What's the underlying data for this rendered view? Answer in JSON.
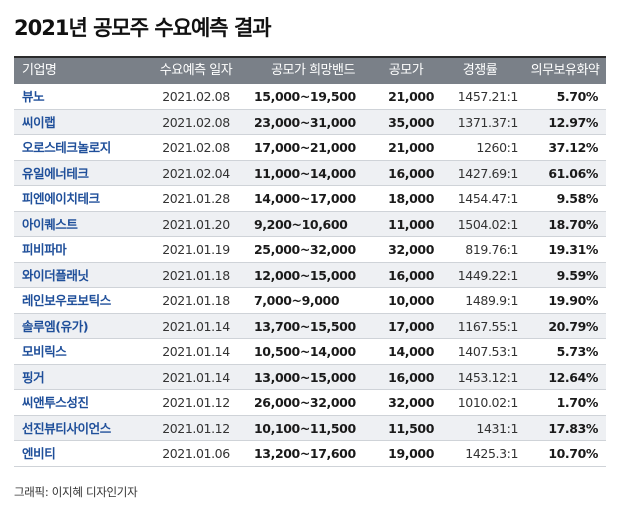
{
  "title": "2021년 공모주 수요예측 결과",
  "credit": "그래픽: 이지혜 디자인기자",
  "colors": {
    "header_bg": "#7a8088",
    "header_rule": "#2c2c2c",
    "company_text": "#1f4f9a",
    "row_alt_bg": "#eef0f3"
  },
  "chart_data": {
    "type": "table",
    "title": "2021년 공모주 수요예측 결과",
    "columns": [
      "기업명",
      "수요예측 일자",
      "공모가 희망밴드",
      "공모가",
      "경쟁률",
      "의무보유화약"
    ],
    "rows": [
      [
        "뷰노",
        "2021.02.08",
        "15,000~19,500",
        "21,000",
        "1457.21:1",
        "5.70%"
      ],
      [
        "씨이랩",
        "2021.02.08",
        "23,000~31,000",
        "35,000",
        "1371.37:1",
        "12.97%"
      ],
      [
        "오로스테크놀로지",
        "2021.02.08",
        "17,000~21,000",
        "21,000",
        "1260:1",
        "37.12%"
      ],
      [
        "유일에너테크",
        "2021.02.04",
        "11,000~14,000",
        "16,000",
        "1427.69:1",
        "61.06%"
      ],
      [
        "피엔에이치테크",
        "2021.01.28",
        "14,000~17,000",
        "18,000",
        "1454.47:1",
        "9.58%"
      ],
      [
        "아이퀘스트",
        "2021.01.20",
        "9,200~10,600",
        "11,000",
        "1504.02:1",
        "18.70%"
      ],
      [
        "피비파마",
        "2021.01.19",
        "25,000~32,000",
        "32,000",
        "819.76:1",
        "19.31%"
      ],
      [
        "와이더플래닛",
        "2021.01.18",
        "12,000~15,000",
        "16,000",
        "1449.22:1",
        "9.59%"
      ],
      [
        "레인보우로보틱스",
        "2021.01.18",
        "7,000~9,000",
        "10,000",
        "1489.9:1",
        "19.90%"
      ],
      [
        "솔루엠(유가)",
        "2021.01.14",
        "13,700~15,500",
        "17,000",
        "1167.55:1",
        "20.79%"
      ],
      [
        "모비릭스",
        "2021.01.14",
        "10,500~14,000",
        "14,000",
        "1407.53:1",
        "5.73%"
      ],
      [
        "핑거",
        "2021.01.14",
        "13,000~15,000",
        "16,000",
        "1453.12:1",
        "12.64%"
      ],
      [
        "씨앤투스성진",
        "2021.01.12",
        "26,000~32,000",
        "32,000",
        "1010.02:1",
        "1.70%"
      ],
      [
        "선진뷰티사이언스",
        "2021.01.12",
        "10,100~11,500",
        "11,500",
        "1431:1",
        "17.83%"
      ],
      [
        "엔비티",
        "2021.01.06",
        "13,200~17,600",
        "19,000",
        "1425.3:1",
        "10.70%"
      ]
    ]
  }
}
